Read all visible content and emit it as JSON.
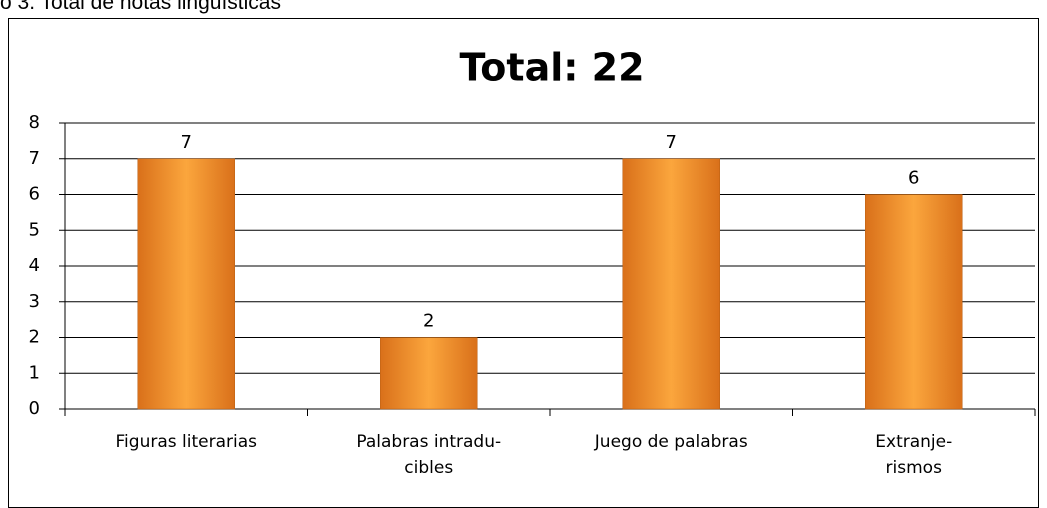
{
  "caption": "o 3. Total de notas lingüísticas",
  "chart_data": {
    "type": "bar",
    "title": "Total: 22",
    "categories": [
      "Figuras literarias",
      "Palabras intradu-\ncibles",
      "Juego de palabras",
      "Extranje-\nrismos"
    ],
    "values": [
      7,
      2,
      7,
      6
    ],
    "color": "#f7962b",
    "ylim": [
      0,
      8
    ],
    "yticks": [
      0,
      1,
      2,
      3,
      4,
      5,
      6,
      7,
      8
    ],
    "grid": true
  }
}
